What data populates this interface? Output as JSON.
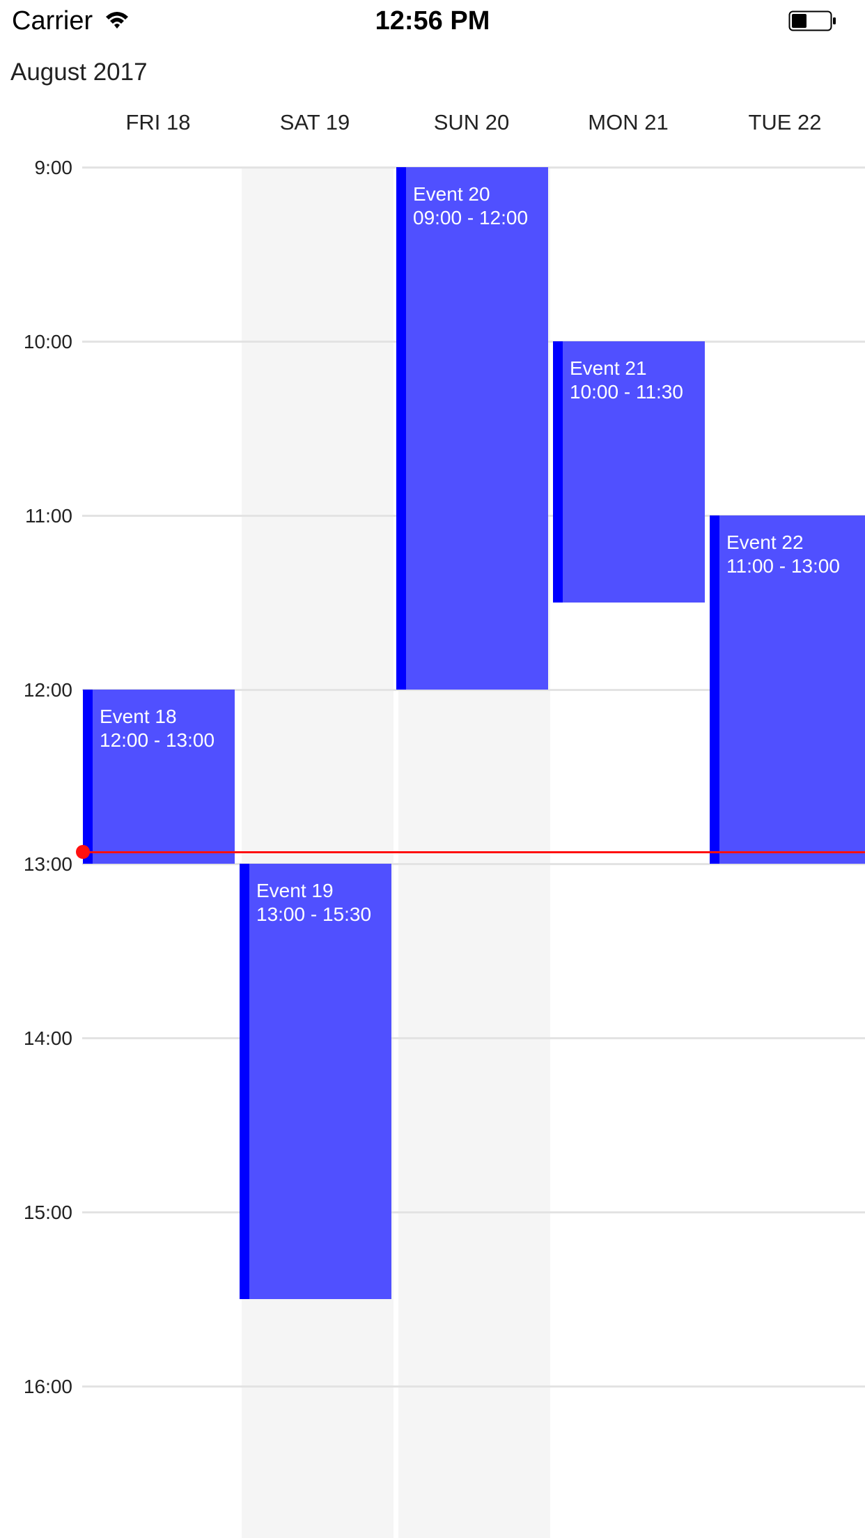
{
  "status_bar": {
    "carrier": "Carrier",
    "time": "12:56 PM",
    "icons": [
      "wifi-icon",
      "battery-icon"
    ]
  },
  "header": {
    "month": "August 2017"
  },
  "days": [
    {
      "label": "FRI 18",
      "weekend": false
    },
    {
      "label": "SAT 19",
      "weekend": true
    },
    {
      "label": "SUN 20",
      "weekend": true
    },
    {
      "label": "MON 21",
      "weekend": false
    },
    {
      "label": "TUE 22",
      "weekend": false
    }
  ],
  "hours": [
    "9:00",
    "10:00",
    "11:00",
    "12:00",
    "13:00",
    "14:00",
    "15:00",
    "16:00"
  ],
  "events": [
    {
      "title": "Event 18",
      "time": "12:00 - 13:00",
      "day": 0,
      "start": 12.0,
      "end": 13.0
    },
    {
      "title": "Event 19",
      "time": "13:00 - 15:30",
      "day": 1,
      "start": 13.0,
      "end": 15.5
    },
    {
      "title": "Event 20",
      "time": "09:00 - 12:00",
      "day": 2,
      "start": 9.0,
      "end": 12.0
    },
    {
      "title": "Event 21",
      "time": "10:00 - 11:30",
      "day": 3,
      "start": 10.0,
      "end": 11.5
    },
    {
      "title": "Event 22",
      "time": "11:00 - 13:00",
      "day": 4,
      "start": 11.0,
      "end": 13.0
    }
  ],
  "now_hour": 12.9333,
  "colors": {
    "event_fill": "#5050ff",
    "event_stripe": "#0000ff",
    "now_indicator": "#ff1010",
    "weekend_bg": "#f5f5f5",
    "grid_line": "#e3e3e3"
  }
}
